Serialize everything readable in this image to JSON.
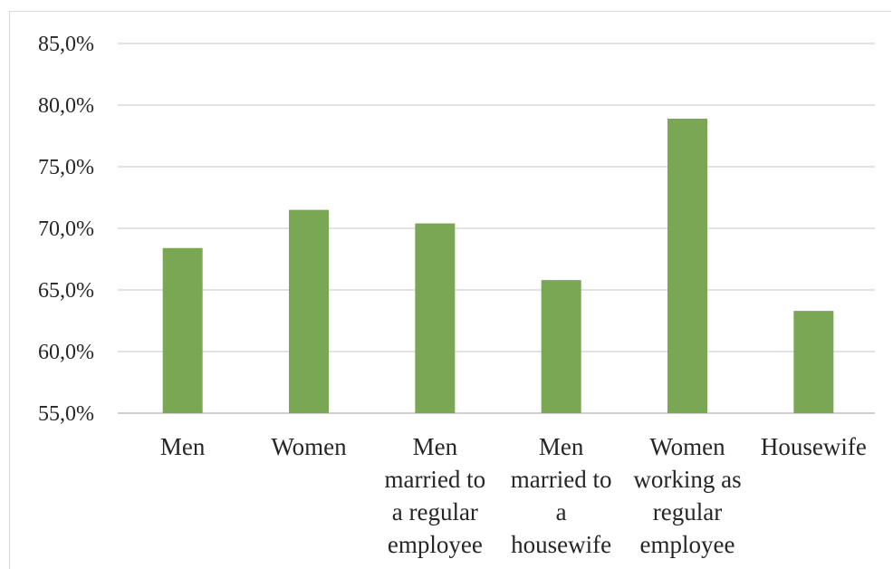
{
  "chart_data": {
    "type": "bar",
    "categories": [
      [
        "Men"
      ],
      [
        "Women"
      ],
      [
        "Men",
        "married to",
        "a regular",
        "employee"
      ],
      [
        "Men",
        "married to",
        "a",
        "housewife"
      ],
      [
        "Women",
        "working as",
        "regular",
        "employee"
      ],
      [
        "Housewife"
      ]
    ],
    "values": [
      68.4,
      71.5,
      70.4,
      65.8,
      78.9,
      63.3
    ],
    "ylim": [
      55,
      85
    ],
    "yticks": [
      "55,0%",
      "60,0%",
      "65,0%",
      "70,0%",
      "75,0%",
      "80,0%",
      "85,0%"
    ],
    "bar_color": "#7aa753",
    "grid": true,
    "title": "",
    "xlabel": "",
    "ylabel": ""
  }
}
